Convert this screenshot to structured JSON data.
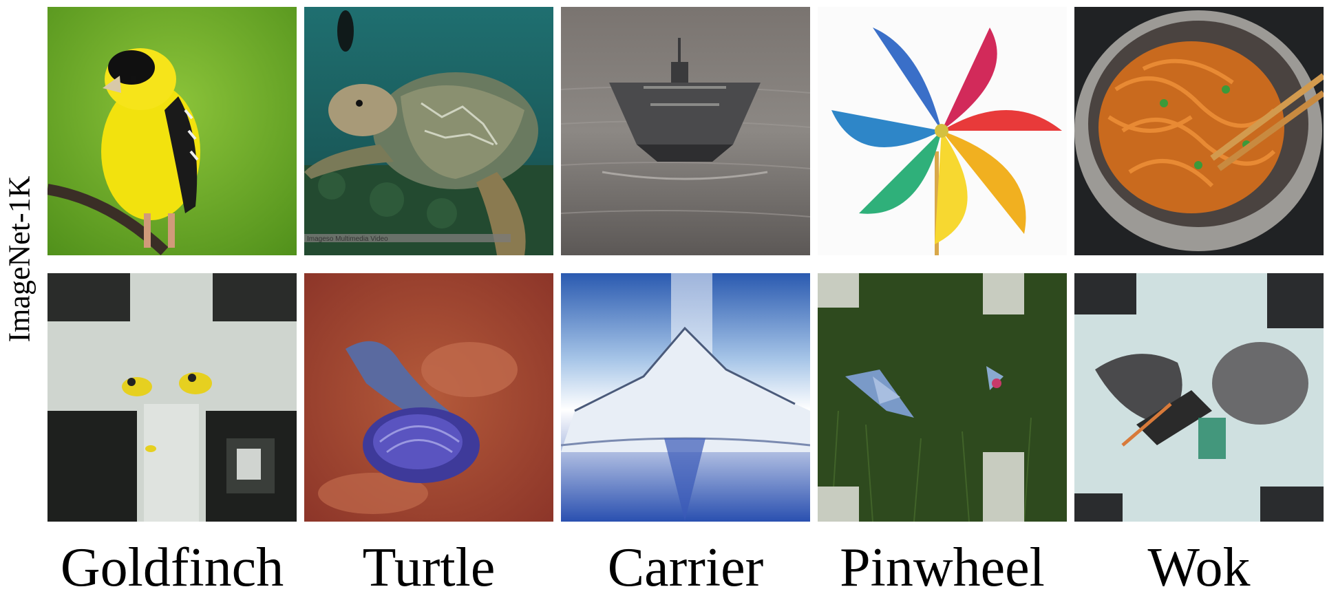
{
  "row_label": "ImageNet-1K",
  "columns": [
    {
      "label": "Goldfinch"
    },
    {
      "label": "Turtle"
    },
    {
      "label": "Carrier"
    },
    {
      "label": "Pinwheel"
    },
    {
      "label": "Wok"
    }
  ],
  "watermark_text": "Imageso Multimedia Video",
  "colors": {
    "background": "#ffffff",
    "text": "#000000"
  }
}
